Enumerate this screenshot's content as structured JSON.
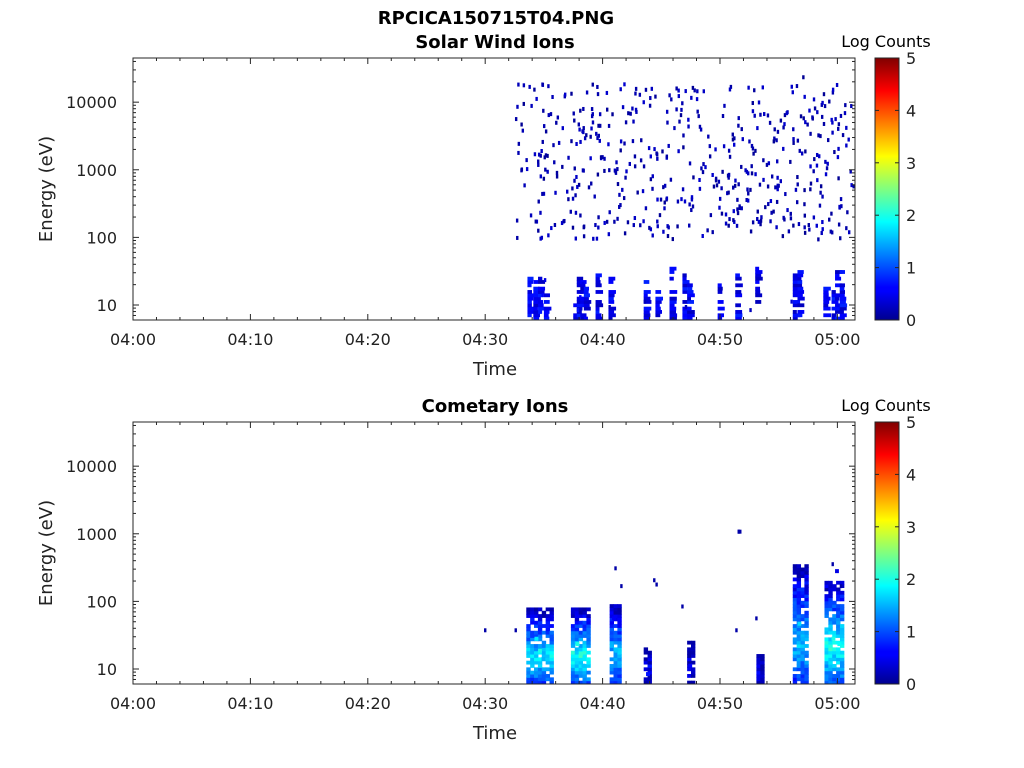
{
  "figure": {
    "title": "RPCICA150715T04.PNG"
  },
  "chart_data": [
    {
      "type": "heatmap",
      "title": "Solar Wind Ions",
      "xlabel": "Time",
      "ylabel": "Energy (eV)",
      "yscale": "log",
      "ylim": [
        6,
        45000
      ],
      "xlim_minutes": [
        0,
        61.5
      ],
      "x_ticks": [
        "04:00",
        "04:10",
        "04:20",
        "04:30",
        "04:40",
        "04:50",
        "05:00"
      ],
      "y_ticks": [
        "10",
        "100",
        "1000",
        "10000"
      ],
      "colorbar": {
        "label": "Log Counts",
        "range": [
          0,
          5
        ],
        "ticks": [
          "0",
          "1",
          "2",
          "3",
          "4",
          "5"
        ],
        "colormap": "jet"
      },
      "data_start": "04:32:30",
      "data_end": "05:01:30",
      "cells": [
        {
          "t": 34.5,
          "e": 12,
          "v": 0.5
        },
        {
          "t": 34.8,
          "e": 15,
          "v": 0.6
        },
        {
          "t": 35.0,
          "e": 25,
          "v": 0.5
        },
        {
          "t": 37.8,
          "e": 9,
          "v": 0.7
        },
        {
          "t": 38.0,
          "e": 14,
          "v": 0.6
        },
        {
          "t": 38.2,
          "e": 22,
          "v": 0.5
        },
        {
          "t": 40.5,
          "e": 10,
          "v": 0.3
        },
        {
          "t": 43.5,
          "e": 12,
          "v": 0.3
        },
        {
          "t": 47.0,
          "e": 10,
          "v": 0.3
        },
        {
          "t": 52.5,
          "e": 9,
          "v": 0.3
        },
        {
          "t": 56.0,
          "e": 12,
          "v": 0.4
        },
        {
          "t": 59.0,
          "e": 14,
          "v": 0.5
        },
        {
          "t": 33.0,
          "e": 5000,
          "v": 0.1
        },
        {
          "t": 38.0,
          "e": 8000,
          "v": 0.1
        },
        {
          "t": 45.0,
          "e": 2000,
          "v": 0.1
        },
        {
          "t": 51.0,
          "e": 3000,
          "v": 0.1
        },
        {
          "t": 57.0,
          "e": 25000,
          "v": 0.1
        },
        {
          "t": 60.0,
          "e": 800,
          "v": 0.1
        }
      ]
    },
    {
      "type": "heatmap",
      "title": "Cometary Ions",
      "xlabel": "Time",
      "ylabel": "Energy (eV)",
      "yscale": "log",
      "ylim": [
        6,
        45000
      ],
      "xlim_minutes": [
        0,
        61.5
      ],
      "x_ticks": [
        "04:00",
        "04:10",
        "04:20",
        "04:30",
        "04:40",
        "04:50",
        "05:00"
      ],
      "y_ticks": [
        "10",
        "100",
        "1000",
        "10000"
      ],
      "colorbar": {
        "label": "Log Counts",
        "range": [
          0,
          5
        ],
        "ticks": [
          "0",
          "1",
          "2",
          "3",
          "4",
          "5"
        ],
        "colormap": "jet"
      },
      "data_start": "04:32:30",
      "data_end": "05:01:30",
      "cells": [
        {
          "t": 34.2,
          "e": 30,
          "v": 1.8
        },
        {
          "t": 34.5,
          "e": 20,
          "v": 2.0
        },
        {
          "t": 34.8,
          "e": 15,
          "v": 1.5
        },
        {
          "t": 37.7,
          "e": 25,
          "v": 2.0
        },
        {
          "t": 38.0,
          "e": 18,
          "v": 2.1
        },
        {
          "t": 38.2,
          "e": 12,
          "v": 1.6
        },
        {
          "t": 41.0,
          "e": 20,
          "v": 1.6
        },
        {
          "t": 40.8,
          "e": 60,
          "v": 0.6
        },
        {
          "t": 43.7,
          "e": 9,
          "v": 0.7
        },
        {
          "t": 47.3,
          "e": 12,
          "v": 0.6
        },
        {
          "t": 51.5,
          "e": 1150,
          "v": 0.2
        },
        {
          "t": 56.6,
          "e": 50,
          "v": 1.7
        },
        {
          "t": 56.9,
          "e": 30,
          "v": 1.5
        },
        {
          "t": 59.5,
          "e": 30,
          "v": 2.0
        },
        {
          "t": 60.0,
          "e": 25,
          "v": 1.9
        },
        {
          "t": 59.8,
          "e": 300,
          "v": 0.5
        }
      ]
    }
  ]
}
